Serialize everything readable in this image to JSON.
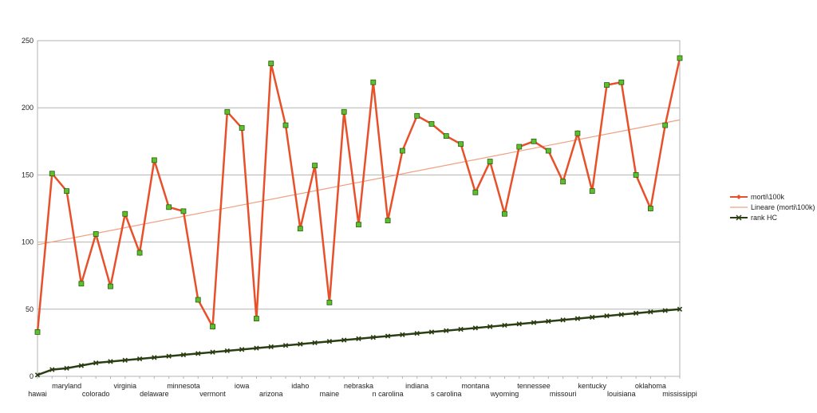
{
  "chart_data": {
    "type": "line",
    "title": "",
    "xlabel": "",
    "ylabel": "",
    "ylim": [
      0,
      250
    ],
    "yticks": [
      0,
      50,
      100,
      150,
      200,
      250
    ],
    "grid": true,
    "legend_position": "right",
    "categories": [
      "hawai",
      "",
      "maryland",
      "",
      "colorado",
      "",
      "virginia",
      "",
      "delaware",
      "",
      "minnesota",
      "",
      "vermont",
      "",
      "iowa",
      "",
      "arizona",
      "",
      "idaho",
      "",
      "maine",
      "",
      "nebraska",
      "",
      "n carolina",
      "",
      "indiana",
      "",
      "s carolina",
      "",
      "montana",
      "",
      "wyoming",
      "",
      "tennessee",
      "",
      "missouri",
      "",
      "kentucky",
      "",
      "louisiana",
      "",
      "oklahoma",
      "",
      "mississippi"
    ],
    "series": [
      {
        "name": "morti\\100k",
        "color": "#e8502a",
        "marker_fill": "#5cbf2e",
        "values": [
          33,
          151,
          138,
          69,
          106,
          67,
          121,
          92,
          161,
          126,
          123,
          57,
          37,
          197,
          185,
          43,
          233,
          187,
          110,
          157,
          55,
          197,
          113,
          219,
          116,
          168,
          194,
          188,
          179,
          173,
          137,
          160,
          121,
          171,
          175,
          168,
          145,
          181,
          138,
          217,
          219,
          150,
          125,
          187,
          237
        ]
      },
      {
        "name": "rank HC",
        "color": "#2b3d12",
        "values": [
          1,
          5,
          6,
          8,
          10,
          11,
          12,
          13,
          14,
          15,
          16,
          17,
          18,
          19,
          20,
          21,
          22,
          23,
          24,
          25,
          26,
          27,
          28,
          29,
          30,
          31,
          32,
          33,
          34,
          35,
          36,
          37,
          38,
          39,
          40,
          41,
          42,
          43,
          44,
          45,
          46,
          47,
          48,
          49,
          50
        ]
      }
    ],
    "trendline": {
      "name": "Lineare (morti\\100k)",
      "color": "#f0a080",
      "start": 98,
      "end": 191
    }
  }
}
